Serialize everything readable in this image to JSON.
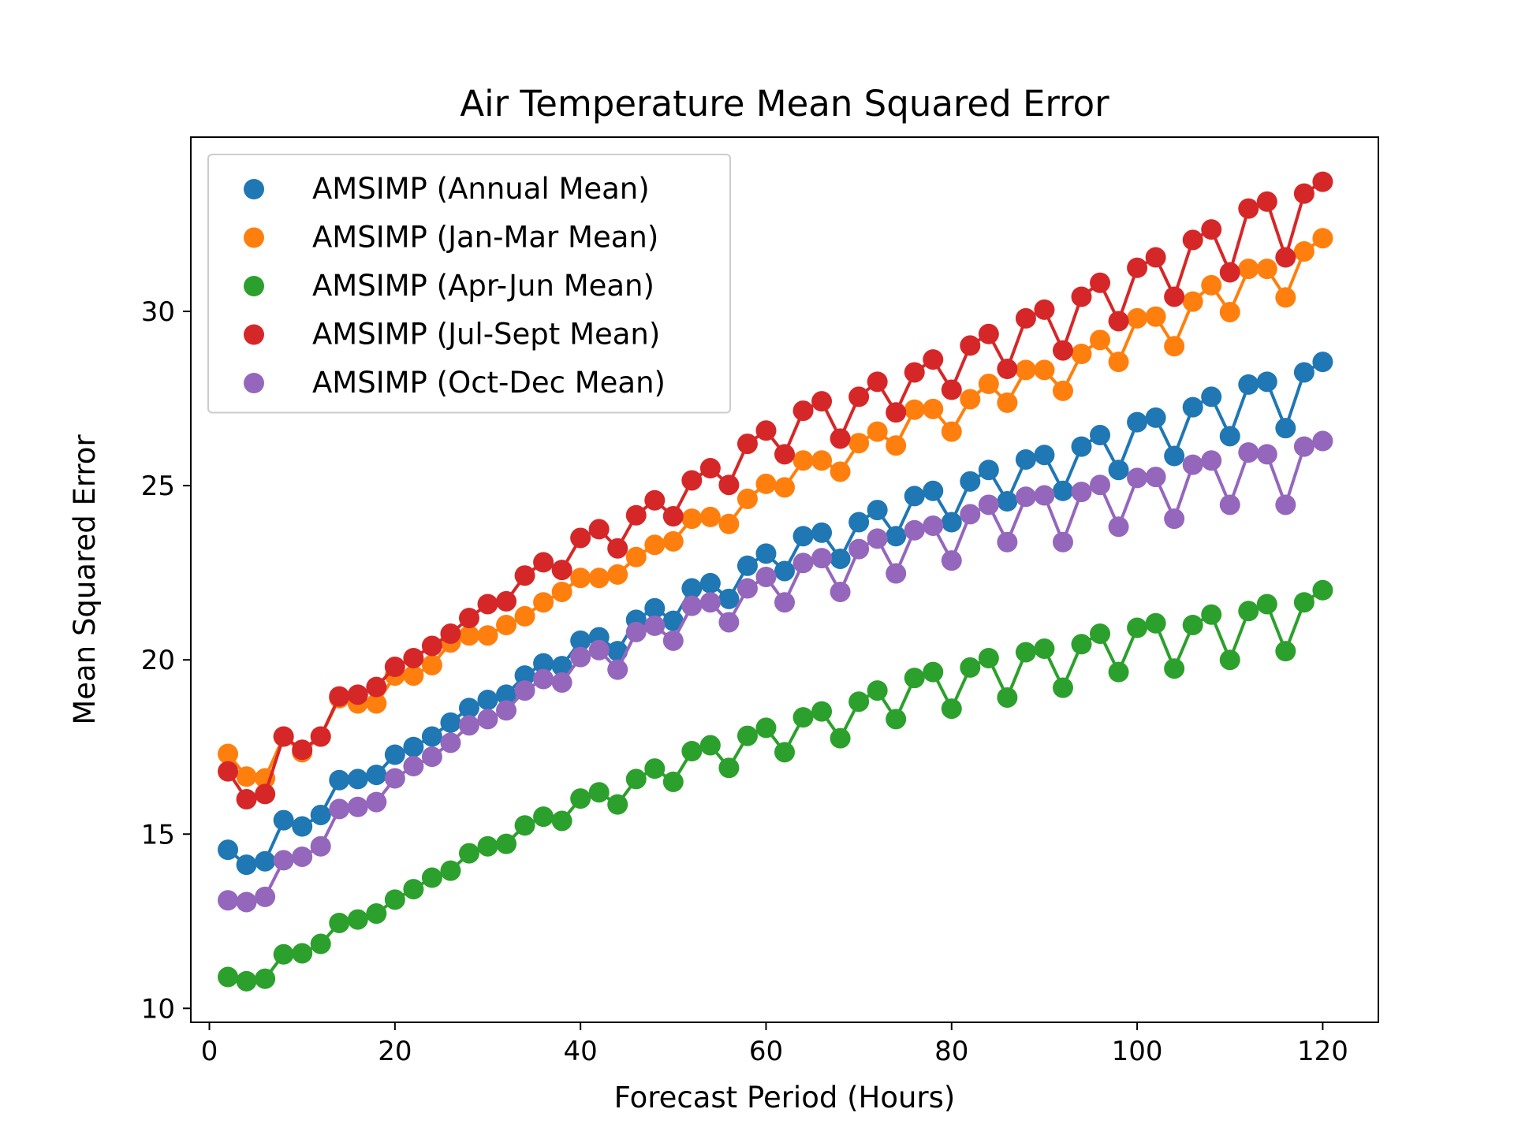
{
  "chart_data": {
    "type": "line",
    "title": "Air Temperature Mean Squared Error",
    "xlabel": "Forecast Period (Hours)",
    "ylabel": "Mean Squared Error",
    "xlim": [
      -2,
      126
    ],
    "ylim": [
      9.6,
      35.0
    ],
    "xticks": [
      0,
      20,
      40,
      60,
      80,
      100,
      120
    ],
    "yticks": [
      10,
      15,
      20,
      25,
      30
    ],
    "grid": false,
    "legend_position": "top-left",
    "x": [
      2,
      4,
      6,
      8,
      10,
      12,
      14,
      16,
      18,
      20,
      22,
      24,
      26,
      28,
      30,
      32,
      34,
      36,
      38,
      40,
      42,
      44,
      46,
      48,
      50,
      52,
      54,
      56,
      58,
      60,
      62,
      64,
      66,
      68,
      70,
      72,
      74,
      76,
      78,
      80,
      82,
      84,
      86,
      88,
      90,
      92,
      94,
      96,
      98,
      100,
      102,
      104,
      106,
      108,
      110,
      112,
      114,
      116,
      118,
      120
    ],
    "series": [
      {
        "name": "AMSIMP (Annual Mean)",
        "color": "#1f77b4",
        "values": [
          14.55,
          14.12,
          14.22,
          15.4,
          15.22,
          15.55,
          16.55,
          16.58,
          16.7,
          17.28,
          17.5,
          17.8,
          18.2,
          18.62,
          18.85,
          19.0,
          19.55,
          19.9,
          19.82,
          20.55,
          20.65,
          20.25,
          21.15,
          21.48,
          21.12,
          22.05,
          22.2,
          21.75,
          22.7,
          23.05,
          22.55,
          23.55,
          23.65,
          22.9,
          23.95,
          24.3,
          23.55,
          24.7,
          24.85,
          23.95,
          25.12,
          25.45,
          24.55,
          25.75,
          25.88,
          24.85,
          26.12,
          26.45,
          25.45,
          26.82,
          26.95,
          25.85,
          27.25,
          27.55,
          26.42,
          27.9,
          27.98,
          26.65,
          28.25,
          28.55
        ]
      },
      {
        "name": "AMSIMP (Jan-Mar Mean)",
        "color": "#ff7f0e",
        "values": [
          17.3,
          16.65,
          16.6,
          17.8,
          17.35,
          17.8,
          18.9,
          18.75,
          18.75,
          19.55,
          19.55,
          19.85,
          20.5,
          20.7,
          20.7,
          21.0,
          21.25,
          21.65,
          21.95,
          22.35,
          22.35,
          22.45,
          22.95,
          23.3,
          23.4,
          24.05,
          24.1,
          23.9,
          24.62,
          25.05,
          24.95,
          25.72,
          25.72,
          25.4,
          26.22,
          26.55,
          26.15,
          27.18,
          27.2,
          26.55,
          27.48,
          27.92,
          27.38,
          28.32,
          28.32,
          27.72,
          28.78,
          29.18,
          28.55,
          29.8,
          29.85,
          29.0,
          30.28,
          30.75,
          29.98,
          31.22,
          31.22,
          30.4,
          31.72,
          32.1
        ]
      },
      {
        "name": "AMSIMP (Apr-Jun Mean)",
        "color": "#2ca02c",
        "values": [
          10.9,
          10.78,
          10.85,
          11.55,
          11.58,
          11.85,
          12.45,
          12.55,
          12.72,
          13.12,
          13.42,
          13.75,
          13.95,
          14.45,
          14.65,
          14.72,
          15.25,
          15.5,
          15.38,
          16.02,
          16.2,
          15.85,
          16.58,
          16.88,
          16.5,
          17.38,
          17.55,
          16.9,
          17.82,
          18.05,
          17.35,
          18.35,
          18.52,
          17.75,
          18.8,
          19.12,
          18.3,
          19.48,
          19.65,
          18.6,
          19.78,
          20.05,
          18.92,
          20.22,
          20.32,
          19.2,
          20.45,
          20.75,
          19.65,
          20.92,
          21.05,
          19.75,
          21.0,
          21.3,
          20.0,
          21.4,
          21.6,
          20.25,
          21.65,
          22.0
        ]
      },
      {
        "name": "AMSIMP (Jul-Sept Mean)",
        "color": "#d62728",
        "values": [
          16.8,
          16.0,
          16.15,
          17.8,
          17.42,
          17.8,
          18.95,
          19.0,
          19.22,
          19.8,
          20.05,
          20.4,
          20.75,
          21.2,
          21.6,
          21.68,
          22.42,
          22.8,
          22.58,
          23.5,
          23.75,
          23.2,
          24.15,
          24.58,
          24.12,
          25.15,
          25.5,
          25.02,
          26.2,
          26.58,
          25.9,
          27.15,
          27.42,
          26.35,
          27.55,
          27.98,
          27.1,
          28.25,
          28.62,
          27.75,
          29.02,
          29.35,
          28.35,
          29.8,
          30.05,
          28.88,
          30.42,
          30.82,
          29.72,
          31.25,
          31.55,
          30.42,
          32.05,
          32.35,
          31.12,
          32.95,
          33.15,
          31.55,
          33.38,
          33.72
        ]
      },
      {
        "name": "AMSIMP (Oct-Dec Mean)",
        "color": "#9467bd",
        "values": [
          13.1,
          13.05,
          13.2,
          14.25,
          14.35,
          14.65,
          15.72,
          15.78,
          15.92,
          16.6,
          16.95,
          17.22,
          17.62,
          18.12,
          18.3,
          18.55,
          19.12,
          19.45,
          19.35,
          20.08,
          20.28,
          19.72,
          20.8,
          20.98,
          20.55,
          21.55,
          21.65,
          21.08,
          22.05,
          22.38,
          21.65,
          22.78,
          22.92,
          21.95,
          23.18,
          23.48,
          22.48,
          23.72,
          23.85,
          22.85,
          24.18,
          24.45,
          23.38,
          24.68,
          24.72,
          23.38,
          24.82,
          25.02,
          23.82,
          25.22,
          25.25,
          24.05,
          25.6,
          25.72,
          24.45,
          25.95,
          25.9,
          24.45,
          26.12,
          26.28
        ]
      }
    ]
  }
}
